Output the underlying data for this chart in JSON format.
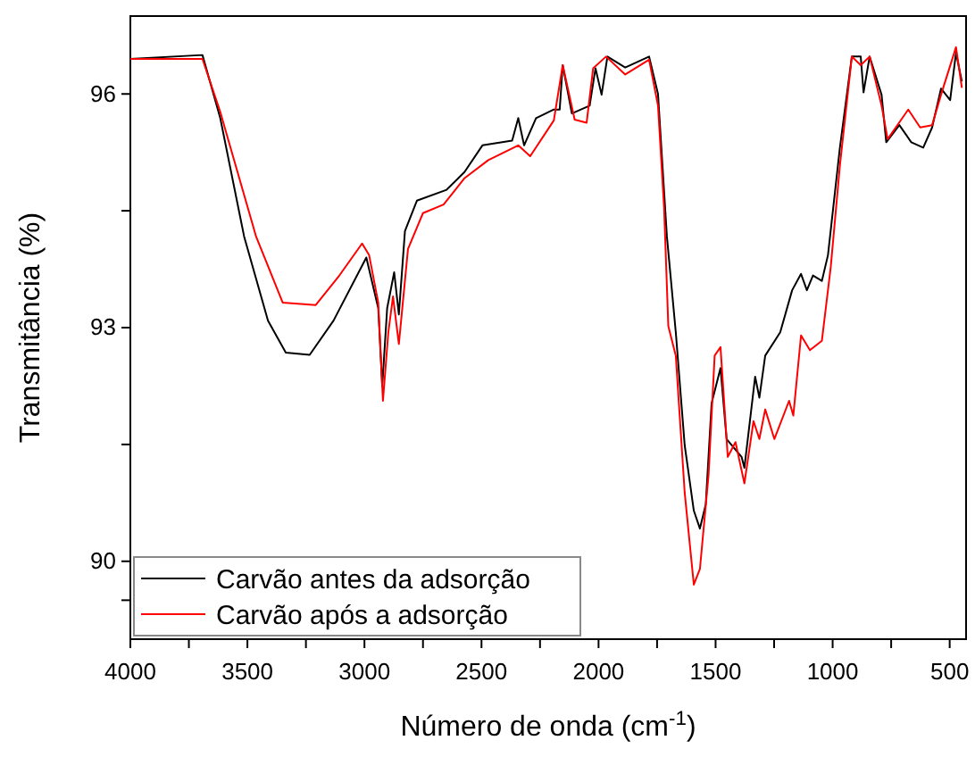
{
  "chart_data": {
    "type": "line",
    "xlabel": "Número de onda (cm$^{-1}$)",
    "ylabel": "Transmitância (%)",
    "xlim": [
      4000,
      430
    ],
    "ylim": [
      89,
      97
    ],
    "xticks": [
      4000,
      {
        "value": 3750,
        "label": null
      },
      3500,
      {
        "value": 3250,
        "label": null
      },
      3000,
      {
        "value": 2750,
        "label": null
      },
      2500,
      {
        "value": 2250,
        "label": null
      },
      2000,
      {
        "value": 1750,
        "label": null
      },
      1500,
      {
        "value": 1250,
        "label": null
      },
      1000,
      {
        "value": 750,
        "label": null
      },
      500
    ],
    "yticks": [
      {
        "value": 89.5,
        "label": null
      },
      90,
      {
        "value": 91.5,
        "label": null
      },
      93,
      {
        "value": 94.5,
        "label": null
      },
      96
    ],
    "grid": false,
    "legend": "bottom left",
    "line_style": "solid",
    "marker": "none",
    "series": [
      {
        "name": "Carvão antes da adsorção",
        "color": "#000000",
        "x": [
          4000,
          3692,
          3616,
          3514,
          3412,
          3336,
          3234,
          3132,
          2992,
          2941,
          2924,
          2903,
          2873,
          2853,
          2827,
          2776,
          2649,
          2572,
          2496,
          2369,
          2343,
          2318,
          2267,
          2191,
          2166,
          2153,
          2114,
          2038,
          2013,
          1987,
          1962,
          1886,
          1784,
          1746,
          1708,
          1670,
          1632,
          1593,
          1567,
          1542,
          1517,
          1479,
          1453,
          1389,
          1377,
          1331,
          1313,
          1288,
          1224,
          1173,
          1135,
          1110,
          1084,
          1046,
          1020,
          969,
          918,
          880,
          868,
          842,
          791,
          771,
          715,
          664,
          613,
          575,
          537,
          498,
          473,
          448
        ],
        "values": [
          96.45,
          96.5,
          95.69,
          94.17,
          93.09,
          92.68,
          92.65,
          93.09,
          93.9,
          93.25,
          92.25,
          93.25,
          93.71,
          93.17,
          94.24,
          94.63,
          94.77,
          95.0,
          95.34,
          95.4,
          95.69,
          95.34,
          95.69,
          95.8,
          95.8,
          96.37,
          95.75,
          95.85,
          96.33,
          95.99,
          96.48,
          96.34,
          96.48,
          96.0,
          94.17,
          92.94,
          91.49,
          90.65,
          90.42,
          90.73,
          92.03,
          92.48,
          91.57,
          91.34,
          91.2,
          92.37,
          92.1,
          92.64,
          92.94,
          93.48,
          93.69,
          93.48,
          93.67,
          93.6,
          93.93,
          95.31,
          96.48,
          96.48,
          96.02,
          96.48,
          95.99,
          95.38,
          95.6,
          95.38,
          95.31,
          95.57,
          96.07,
          95.92,
          96.53,
          96.16
        ]
      },
      {
        "name": "Carvão após a adsorção",
        "color": "#ff0000",
        "x": [
          4000,
          3692,
          3616,
          3463,
          3349,
          3208,
          3107,
          3010,
          2980,
          2941,
          2921,
          2898,
          2878,
          2853,
          2814,
          2750,
          2662,
          2572,
          2471,
          2343,
          2292,
          2191,
          2153,
          2102,
          2051,
          2023,
          1968,
          1886,
          1784,
          1746,
          1720,
          1702,
          1670,
          1632,
          1593,
          1567,
          1530,
          1504,
          1479,
          1448,
          1415,
          1377,
          1338,
          1313,
          1288,
          1249,
          1186,
          1168,
          1135,
          1097,
          1046,
          1008,
          969,
          918,
          880,
          842,
          791,
          765,
          677,
          626,
          575,
          537,
          473,
          448
        ],
        "values": [
          96.45,
          96.45,
          95.77,
          94.17,
          93.32,
          93.29,
          93.67,
          94.08,
          93.93,
          93.32,
          92.06,
          92.94,
          93.4,
          92.79,
          94.01,
          94.47,
          94.58,
          94.92,
          95.15,
          95.34,
          95.2,
          95.66,
          96.37,
          95.67,
          95.63,
          96.33,
          96.48,
          96.25,
          96.44,
          95.85,
          94.54,
          93.02,
          92.64,
          90.88,
          89.7,
          89.9,
          91.11,
          92.64,
          92.75,
          91.34,
          91.53,
          91.0,
          91.8,
          91.57,
          91.95,
          91.57,
          92.06,
          91.87,
          92.9,
          92.71,
          92.83,
          93.78,
          95.08,
          96.48,
          96.37,
          96.48,
          95.85,
          95.42,
          95.8,
          95.57,
          95.6,
          95.99,
          96.6,
          96.08
        ]
      }
    ]
  }
}
